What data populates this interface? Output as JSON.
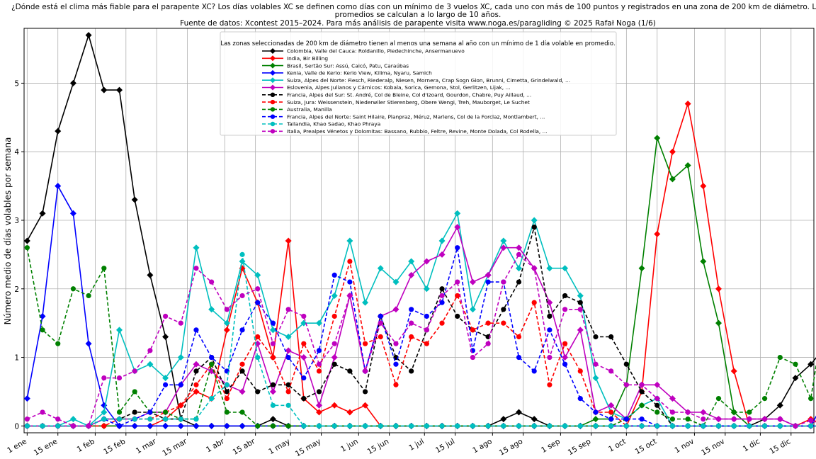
{
  "chart_data": {
    "type": "line",
    "title_lines": [
      "¿Dónde está el clima más fiable para el parapente XC? Los días volables XC se definen como días con un mínimo de 3 vuelos XC, cada uno con más de 100 puntos y registrados en una zona de 200 km de diámetro. Los",
      "promedios se calculan a lo largo de 10 años.",
      "Fuente de datos: Xcontest 2015–2024. Para más análisis de parapente visita www.noga.es/paragliding © 2025 Rafał Noga (1/6)"
    ],
    "ylabel": "Número medio de días volables por semana",
    "xlabel": "",
    "x_ticks": [
      "1 ene",
      "15 ene",
      "1 feb",
      "15 feb",
      "1 mar",
      "15 mar",
      "1 abr",
      "15 abr",
      "1 may",
      "15 may",
      "1 jun",
      "15 jun",
      "1 jul",
      "15 jul",
      "1 ago",
      "15 ago",
      "1 sep",
      "15 sep",
      "1 oct",
      "15 oct",
      "1 nov",
      "15 nov",
      "1 dic",
      "15 dic"
    ],
    "y_ticks": [
      0,
      1,
      2,
      3,
      4,
      5
    ],
    "ylim": [
      -0.1,
      5.8
    ],
    "xlim_weeks": [
      -0.2,
      51.2
    ],
    "grid": true,
    "legend_title": "Las zonas seleccionadas de 200 km de diámetro tienen al menos una semana al año con un mínimo de 1 día volable en promedio.",
    "legend_position": "top-center",
    "series": [
      {
        "name": "Colombia, Valle del Cauca: Roldanillo, Piedechinche, Ansermanuevo",
        "color": "#000000",
        "dash": false,
        "marker": "diamond",
        "values": [
          2.7,
          3.1,
          4.3,
          5.0,
          5.7,
          4.9,
          4.9,
          3.3,
          2.2,
          1.3,
          0.1,
          0,
          0,
          0,
          0,
          0,
          0.1,
          0,
          0,
          0,
          0,
          0,
          0,
          0,
          0,
          0,
          0,
          0,
          0,
          0,
          0,
          0.1,
          0.2,
          0.1,
          0,
          0,
          0,
          0,
          0,
          0,
          0,
          0,
          0,
          0,
          0,
          0,
          0,
          0,
          0.1,
          0.3,
          0.7,
          0.9,
          1.17
        ]
      },
      {
        "name": "India, Bir Billing",
        "color": "#ff0000",
        "dash": false,
        "marker": "diamond",
        "values": [
          0,
          0,
          0,
          0,
          0,
          0,
          0,
          0,
          0,
          0.1,
          0.3,
          0.5,
          0.4,
          1.4,
          2.3,
          1.8,
          1.0,
          2.7,
          0.4,
          0.2,
          0.3,
          0.2,
          0.3,
          0,
          0,
          0,
          0,
          0,
          0,
          0,
          0,
          0,
          0,
          0,
          0,
          0,
          0,
          0,
          0,
          0,
          0.5,
          2.8,
          4.0,
          4.7,
          3.5,
          2.0,
          0.8,
          0,
          0,
          0,
          0,
          0.1,
          0
        ]
      },
      {
        "name": "Brasil, Sertão Sur: Assú, Caicó, Patu, Caraúbas",
        "color": "#008000",
        "dash": false,
        "marker": "diamond",
        "values": [
          0,
          0,
          0,
          0,
          0,
          0,
          0,
          0,
          0,
          0,
          0,
          0,
          0,
          0,
          0,
          0,
          0,
          0,
          0,
          0,
          0,
          0,
          0,
          0,
          0,
          0,
          0,
          0,
          0,
          0,
          0,
          0,
          0,
          0,
          0,
          0,
          0,
          0.1,
          0.1,
          0.6,
          2.3,
          4.2,
          3.6,
          3.8,
          2.4,
          1.5,
          0.2,
          0,
          0,
          0,
          0,
          0,
          0
        ]
      },
      {
        "name": "Kenia, Valle de Kerio: Kerio View, Kilima, Nyaru, Samich",
        "color": "#0000ff",
        "dash": false,
        "marker": "diamond",
        "values": [
          0.4,
          1.6,
          3.5,
          3.1,
          1.2,
          0.3,
          0,
          0,
          0,
          0,
          0,
          0,
          0,
          0,
          0,
          0,
          0,
          0,
          0,
          0,
          0,
          0,
          0,
          0,
          0,
          0,
          0,
          0,
          0,
          0,
          0,
          0,
          0,
          0,
          0,
          0,
          0,
          0,
          0,
          0,
          0,
          0,
          0,
          0,
          0,
          0,
          0,
          0,
          0,
          0,
          0,
          0,
          0.4
        ]
      },
      {
        "name": "Suiza, Alpes del Norte: Fiesch, Riederalp, Niesen, Mornera, Crap Sogn Gion, Brunni, Cimetta, Grindelwald, ...",
        "color": "#00bfbf",
        "dash": false,
        "marker": "diamond",
        "values": [
          0,
          0,
          0,
          0.1,
          0,
          0.2,
          1.4,
          0.8,
          0.9,
          0.7,
          1.0,
          2.6,
          1.7,
          1.5,
          2.4,
          2.2,
          1.4,
          1.3,
          1.5,
          1.5,
          1.9,
          2.7,
          1.8,
          2.3,
          2.1,
          2.4,
          2.0,
          2.7,
          3.1,
          1.7,
          2.2,
          2.7,
          2.3,
          3.0,
          2.3,
          2.3,
          1.9,
          0.7,
          0.2,
          0.1,
          0.3,
          0.4,
          0,
          0,
          0,
          0,
          0,
          0,
          0,
          0,
          0,
          0,
          0
        ]
      },
      {
        "name": "Eslovenia, Alpes Julianos y Cárnicos: Kobala, Sorica, Gemona, Stol, Gerlitzen, Lijak, ...",
        "color": "#bf00bf",
        "dash": false,
        "marker": "diamond",
        "values": [
          0,
          0,
          0,
          0,
          0,
          0.1,
          0.1,
          0.1,
          0.2,
          0.2,
          0.6,
          0.9,
          0.8,
          0.6,
          0.5,
          1.2,
          0.5,
          1.1,
          1.0,
          0.3,
          1.0,
          1.9,
          0.8,
          1.6,
          1.7,
          2.2,
          2.4,
          2.5,
          2.9,
          2.1,
          2.2,
          2.6,
          2.6,
          2.3,
          1.8,
          1.0,
          1.4,
          0.2,
          0.3,
          0.1,
          0.6,
          0.6,
          0.4,
          0.2,
          0.2,
          0.1,
          0.1,
          0.1,
          0.1,
          0.1,
          0,
          0,
          0
        ]
      },
      {
        "name": "Francia, Alpes del Sur: St. André, Col de Bleine, Col d'Izoard, Gourdon, Chabre, Puy Aillaud, ...",
        "color": "#000000",
        "dash": true,
        "marker": "circle",
        "values": [
          0,
          0,
          0,
          0,
          0,
          0.1,
          0.1,
          0.2,
          0.2,
          0.1,
          0.1,
          0.8,
          1.0,
          0.5,
          0.8,
          0.5,
          0.6,
          0.6,
          0.4,
          0.5,
          0.9,
          0.8,
          0.5,
          1.6,
          1.0,
          0.8,
          1.4,
          2.0,
          1.6,
          1.4,
          1.3,
          1.7,
          2.1,
          2.9,
          1.6,
          1.9,
          1.8,
          1.3,
          1.3,
          0.9,
          0.5,
          0.3,
          0,
          0,
          0,
          0,
          0,
          0,
          0,
          0,
          0,
          0,
          0
        ]
      },
      {
        "name": "Suiza, Jura: Weissenstein, Niederwiler Stierenberg, Obere Wengi, Treh, Mauborget, Le Suchet",
        "color": "#ff0000",
        "dash": true,
        "marker": "circle",
        "values": [
          0,
          0,
          0,
          0,
          0,
          0,
          0.1,
          0.1,
          0.1,
          0.2,
          0.3,
          0.6,
          0.9,
          0.4,
          0.9,
          1.3,
          1.0,
          0.5,
          1.2,
          0.8,
          1.6,
          2.4,
          1.2,
          1.3,
          0.6,
          1.3,
          1.2,
          1.5,
          1.9,
          1.4,
          1.5,
          1.5,
          1.3,
          1.8,
          0.6,
          1.2,
          0.8,
          0.2,
          0.2,
          0,
          0,
          0,
          0,
          0,
          0,
          0,
          0,
          0,
          0,
          0,
          0,
          0,
          0
        ]
      },
      {
        "name": "Australia, Manilla",
        "color": "#008000",
        "dash": true,
        "marker": "circle",
        "values": [
          2.6,
          1.4,
          1.2,
          2.0,
          1.9,
          2.3,
          0.2,
          0.5,
          0.2,
          0.2,
          0.1,
          0.1,
          0.9,
          0.2,
          0.2,
          0,
          0,
          0,
          0,
          0,
          0,
          0,
          0,
          0,
          0,
          0,
          0,
          0,
          0,
          0,
          0,
          0,
          0,
          0,
          0,
          0,
          0,
          0,
          0,
          0.1,
          0.3,
          0.2,
          0.1,
          0.1,
          0,
          0.4,
          0.2,
          0.2,
          0.4,
          1.0,
          0.9,
          0.4,
          1.8
        ]
      },
      {
        "name": "Francia, Alpes del Norte: Saint Hilaire, Planpraz, Méruz, Marlens, Col de la Forclaz, Montlambert, ...",
        "color": "#0000ff",
        "dash": true,
        "marker": "circle",
        "values": [
          0,
          0,
          0,
          0,
          0,
          0.1,
          0,
          0.1,
          0.2,
          0.6,
          0.6,
          1.4,
          1.0,
          0.8,
          1.4,
          1.8,
          1.5,
          1.0,
          0.7,
          1.1,
          2.2,
          2.1,
          0.8,
          1.6,
          0.9,
          1.7,
          1.6,
          1.8,
          2.6,
          1.1,
          2.1,
          2.1,
          1.0,
          0.8,
          1.4,
          0.9,
          0.4,
          0.2,
          0.1,
          0.1,
          0.1,
          0,
          0,
          0,
          0,
          0,
          0,
          0,
          0,
          0,
          0,
          0,
          0
        ]
      },
      {
        "name": "Tailandia, Khao Sadao, Khao Phraya",
        "color": "#00bfbf",
        "dash": true,
        "marker": "circle",
        "values": [
          0,
          0,
          0,
          0,
          0,
          0.1,
          0.1,
          0.1,
          0.1,
          0.1,
          0.1,
          0.1,
          0.4,
          0.6,
          2.5,
          1.0,
          0.3,
          0.3,
          0,
          0,
          0,
          0,
          0,
          0,
          0,
          0,
          0,
          0,
          0,
          0,
          0,
          0,
          0,
          0,
          0,
          0,
          0,
          0,
          0,
          0,
          0,
          0,
          0,
          0,
          0,
          0,
          0,
          0,
          0,
          0,
          0,
          0,
          0
        ]
      },
      {
        "name": "Italia, Prealpes Vénetos y Dolomitas: Bassano, Rubbio, Feltre, Revine, Monte Dolada, Col Rodella, ...",
        "color": "#bf00bf",
        "dash": true,
        "marker": "circle",
        "values": [
          0.1,
          0.2,
          0.1,
          0,
          0,
          0.7,
          0.7,
          0.8,
          1.1,
          1.6,
          1.5,
          2.3,
          2.1,
          1.7,
          1.9,
          2.0,
          1.2,
          1.7,
          1.6,
          0.9,
          1.2,
          1.9,
          0.8,
          1.5,
          1.2,
          1.5,
          1.4,
          1.9,
          2.1,
          1.0,
          1.2,
          2.1,
          2.5,
          2.3,
          1.0,
          1.7,
          1.7,
          0.9,
          0.8,
          0.6,
          0.6,
          0.4,
          0.2,
          0.2,
          0.1,
          0.1,
          0.1,
          0.1,
          0.1,
          0.1,
          0,
          0.08,
          0
        ]
      }
    ]
  }
}
